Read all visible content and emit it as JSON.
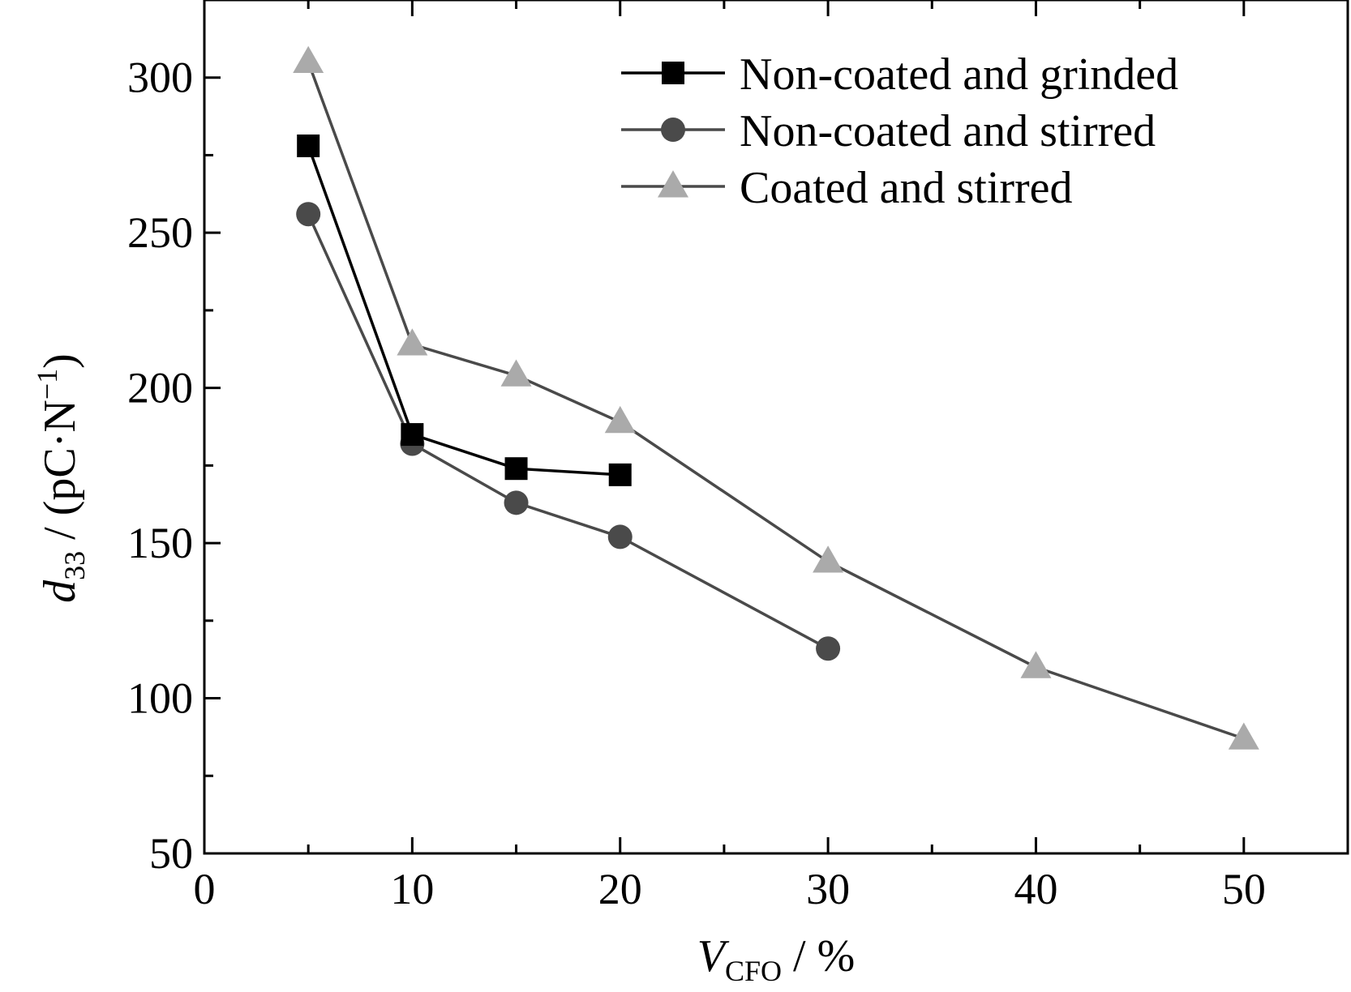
{
  "chart_data": {
    "type": "line",
    "xlabel": {
      "main": "V",
      "sub": "CFO",
      "rest": " / %"
    },
    "ylabel": {
      "main": "d",
      "sub": "33",
      "rest": " / (pC·N",
      "sup": "−1",
      "close": ")"
    },
    "xlim": [
      0,
      55
    ],
    "ylim": [
      50,
      325
    ],
    "xticks": [
      0,
      10,
      20,
      30,
      40,
      50
    ],
    "xtick_labels": [
      "0",
      "10",
      "20",
      "30",
      "40",
      "50"
    ],
    "xminor": [
      5,
      15,
      25,
      35,
      45
    ],
    "yticks": [
      50,
      100,
      150,
      200,
      250,
      300
    ],
    "ytick_labels": [
      "50",
      "100",
      "150",
      "200",
      "250",
      "300"
    ],
    "yminor": [
      75,
      125,
      175,
      225,
      275
    ],
    "grid": false,
    "legend_position": "top-right",
    "series": [
      {
        "name": "Non-coated and grinded",
        "marker": "square",
        "color": "#000000",
        "line_color": "#000000",
        "x": [
          5,
          10,
          15,
          20
        ],
        "y": [
          278,
          185,
          174,
          172
        ]
      },
      {
        "name": "Non-coated and stirred",
        "marker": "circle",
        "color": "#4a4a4a",
        "line_color": "#4a4a4a",
        "x": [
          5,
          10,
          15,
          20,
          30
        ],
        "y": [
          256,
          182,
          163,
          152,
          116
        ]
      },
      {
        "name": "Coated and stirred",
        "marker": "triangle",
        "color": "#aaaaaa",
        "line_color": "#4a4a4a",
        "x": [
          5,
          10,
          15,
          20,
          30,
          40,
          50
        ],
        "y": [
          305,
          214,
          204,
          189,
          144,
          110,
          87
        ]
      }
    ]
  }
}
